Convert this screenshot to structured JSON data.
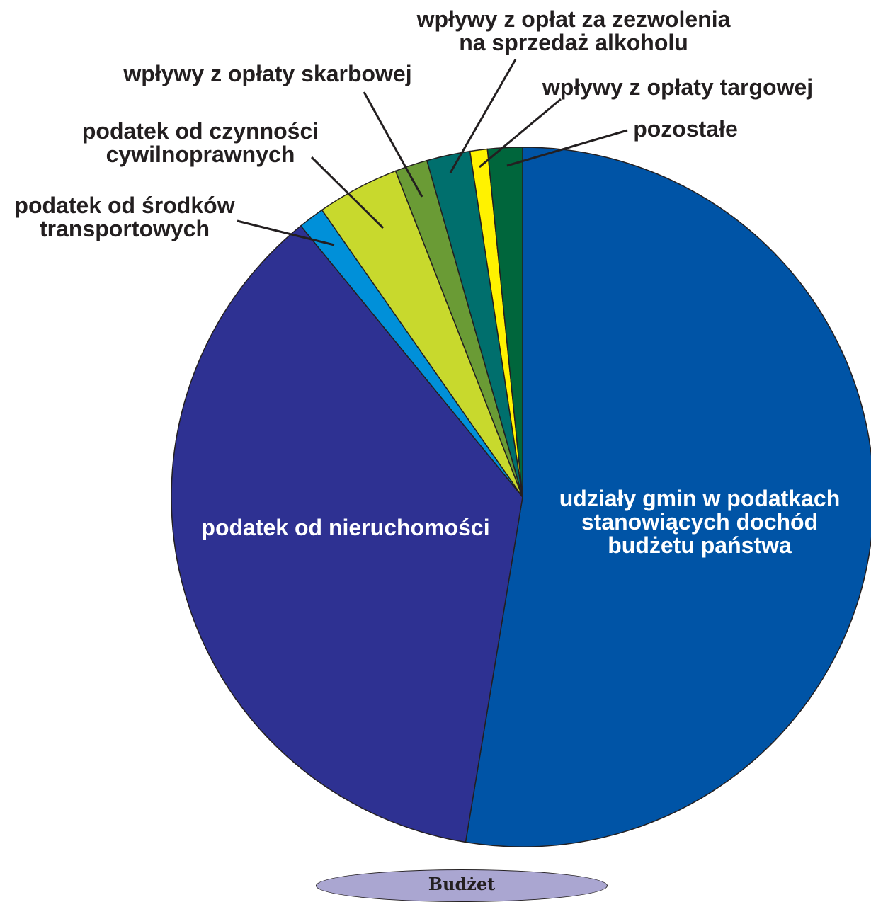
{
  "chart_data": {
    "type": "pie",
    "slices": [
      {
        "label": "udziały gmin w podatkach stanowiących dochód budżetu państwa",
        "value": 52.7,
        "color": "#0054a6"
      },
      {
        "label": "podatek od nieruchomości",
        "value": 36.6,
        "color": "#2e3192"
      },
      {
        "label": "podatek od środków transportowych",
        "value": 1.2,
        "color": "#0090d9"
      },
      {
        "label": "podatek od czynności cywilnoprawnych",
        "value": 3.8,
        "color": "#c8d92d"
      },
      {
        "label": "wpływy z opłaty skarbowej",
        "value": 1.5,
        "color": "#6a9b35"
      },
      {
        "label": "wpływy z opłat za zezwolenia na sprzedaż alkoholu",
        "value": 2.0,
        "color": "#006f6d"
      },
      {
        "label": "wpływy z opłaty targowej",
        "value": 0.8,
        "color": "#fff200"
      },
      {
        "label": "pozostałe",
        "value": 1.6,
        "color": "#00663c"
      }
    ],
    "labels": {
      "udzialy": [
        "udziały gmin w podatkach",
        "stanowiących dochód",
        "budżetu państwa"
      ],
      "nieruchomosci": [
        "podatek od nieruchomości"
      ],
      "srodki": [
        "podatek od środków",
        "transportowych"
      ],
      "czynnosci": [
        "podatek od czynności",
        "cywilnoprawnych"
      ],
      "skarbowa": [
        "wpływy z opłaty skarbowej"
      ],
      "alkohol": [
        "wpływy z opłat za zezwolenia",
        "na sprzedaż alkoholu"
      ],
      "targowa": [
        "wpływy z opłaty targowej"
      ],
      "pozostale": [
        "pozostałe"
      ]
    }
  },
  "caption": "Budżet"
}
